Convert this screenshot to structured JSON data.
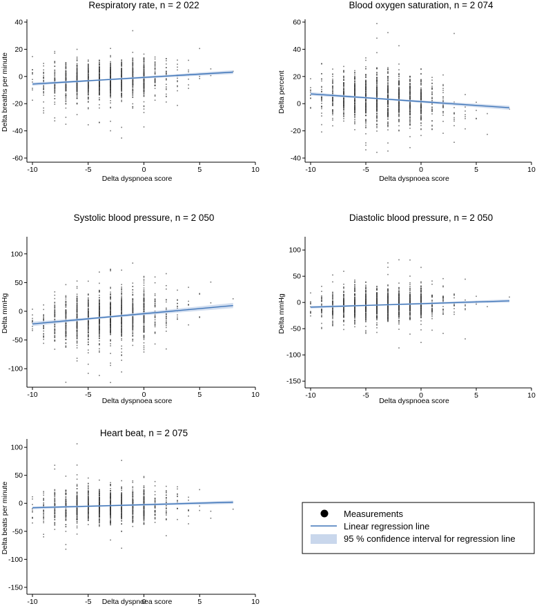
{
  "figure_legend": {
    "measurements": "Measurements",
    "regression": "Linear regression line",
    "ci": "95 %  confidence interval for regression line"
  },
  "colors": {
    "point": "#3a3a3a",
    "line": "#3d74b8",
    "ci": "#c9d7ec",
    "axis": "#000000"
  },
  "chart_data": [
    {
      "type": "scatter",
      "title": "Respiratory rate, n = 2 022",
      "xlabel": "Delta dyspnoea score",
      "ylabel": "Delta breaths per minute",
      "xlim": [
        -10,
        10
      ],
      "ylim": [
        -60,
        40
      ],
      "xticks": [
        -10,
        -5,
        0,
        5,
        10
      ],
      "yticks": [
        40,
        20,
        0,
        -20,
        -40,
        -60
      ],
      "regression": {
        "x0": -10,
        "y0": -5.6,
        "x1": 8,
        "y1": 3.2,
        "ci_halfwidth": 0.9
      },
      "spread_sd": 7,
      "n": 2022
    },
    {
      "type": "scatter",
      "title": "Blood oxygen saturation, n = 2 074",
      "xlabel": "Delta dyspnoea score",
      "ylabel": "Delta percent",
      "xlim": [
        -10,
        10
      ],
      "ylim": [
        -40,
        60
      ],
      "xticks": [
        -10,
        -5,
        0,
        5,
        10
      ],
      "yticks": [
        60,
        40,
        20,
        0,
        -20,
        -40
      ],
      "regression": {
        "x0": -10,
        "y0": 7.2,
        "x1": 8,
        "y1": -3.0,
        "ci_halfwidth": 1.0
      },
      "spread_sd": 9,
      "n": 2074
    },
    {
      "type": "scatter",
      "title": "Systolic blood pressure, n = 2 050",
      "xlabel": "Delta dyspnoea score",
      "ylabel": "Delta mmHg",
      "xlim": [
        -10,
        10
      ],
      "ylim": [
        -125,
        125
      ],
      "xticks": [
        -10,
        -5,
        0,
        5,
        10
      ],
      "yticks": [
        100,
        50,
        0,
        -50,
        -100
      ],
      "regression": {
        "x0": -10,
        "y0": -22,
        "x1": 8,
        "y1": 10,
        "ci_halfwidth": 3
      },
      "spread_sd": 22,
      "n": 2050
    },
    {
      "type": "scatter",
      "title": "Diastolic blood pressure, n = 2 050",
      "xlabel": "Delta dyspnoea score",
      "ylabel": "Delta mmHg",
      "xlim": [
        -10,
        10
      ],
      "ylim": [
        -155,
        120
      ],
      "xticks": [
        -10,
        -5,
        0,
        5,
        10
      ],
      "yticks": [
        100,
        50,
        0,
        -50,
        -100,
        -150
      ],
      "regression": {
        "x0": -10,
        "y0": -9,
        "x1": 8,
        "y1": 3,
        "ci_halfwidth": 2
      },
      "spread_sd": 16,
      "n": 2050
    },
    {
      "type": "scatter",
      "title": "Heart beat, n = 2 075",
      "xlabel": "Delta dyspnoea score",
      "ylabel": "Delta beats per minute",
      "xlim": [
        -10,
        10
      ],
      "ylim": [
        -155,
        110
      ],
      "xticks": [
        -10,
        -5,
        0,
        5,
        10
      ],
      "yticks": [
        100,
        50,
        0,
        -50,
        -100,
        -150
      ],
      "regression": {
        "x0": -10,
        "y0": -8,
        "x1": 8,
        "y1": 2,
        "ci_halfwidth": 2
      },
      "spread_sd": 15,
      "n": 2075
    }
  ]
}
